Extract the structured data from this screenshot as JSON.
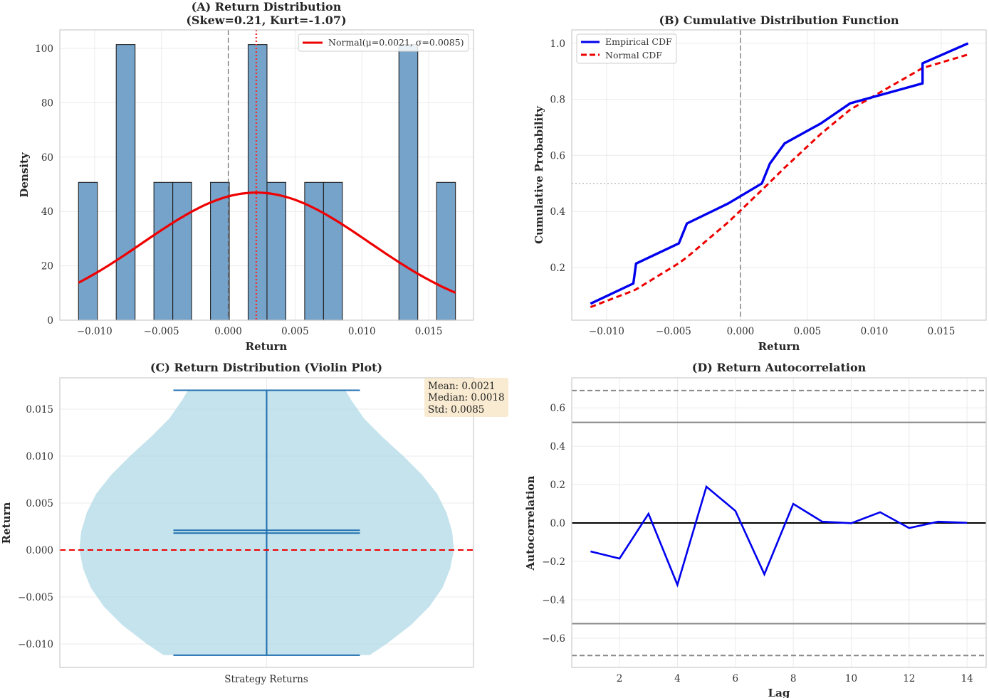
{
  "chart_data": [
    {
      "panel": "A",
      "type": "bar",
      "title": "(A) Return Distribution",
      "subtitle": "(Skew=0.21, Kurt=-1.07)",
      "xlabel": "Return",
      "ylabel": "Density",
      "xlim": [
        -0.0126,
        0.01835
      ],
      "ylim": [
        0,
        106.8
      ],
      "xticks": [
        -0.01,
        -0.005,
        0.0,
        0.005,
        0.01,
        0.015
      ],
      "xtick_labels": [
        "−0.010",
        "−0.005",
        "0.000",
        "0.005",
        "0.010",
        "0.015"
      ],
      "yticks": [
        0,
        20,
        40,
        60,
        80,
        100
      ],
      "ytick_labels": [
        "0",
        "20",
        "40",
        "60",
        "80",
        "100"
      ],
      "grid": true,
      "histogram": {
        "bin_start": -0.0112,
        "bin_width": 0.00141,
        "densities": [
          50.7,
          0,
          101.4,
          0,
          50.7,
          50.7,
          0,
          50.7,
          0,
          101.4,
          50.7,
          0,
          50.7,
          50.7,
          0,
          0,
          0,
          101.4,
          0,
          50.7
        ],
        "color": "#6a9bc6"
      },
      "normal_fit": {
        "mu": 0.0021,
        "sigma": 0.0085,
        "x_range": [
          -0.0112,
          0.017
        ],
        "color": "#ee0000"
      },
      "vlines": [
        {
          "x": 0.0,
          "style": "dashed",
          "color": "#666666",
          "name": "zero"
        },
        {
          "x": 0.0021,
          "style": "dotted",
          "color": "#ee3333",
          "name": "mean"
        }
      ],
      "legend": {
        "position": "top-right",
        "entries": [
          {
            "label": "Normal(μ=0.0021, σ=0.0085)",
            "color": "#ee0000",
            "style": "solid"
          }
        ]
      }
    },
    {
      "panel": "B",
      "type": "line",
      "title": "(B) Cumulative Distribution Function",
      "xlabel": "Return",
      "ylabel": "Cumulative Probability",
      "xlim": [
        -0.0126,
        0.01835
      ],
      "ylim": [
        0.012,
        1.048
      ],
      "xticks": [
        -0.01,
        -0.005,
        0.0,
        0.005,
        0.01,
        0.015
      ],
      "xtick_labels": [
        "−0.010",
        "−0.005",
        "0.000",
        "0.005",
        "0.010",
        "0.015"
      ],
      "yticks": [
        0.2,
        0.4,
        0.6,
        0.8,
        1.0
      ],
      "ytick_labels": [
        "0.2",
        "0.4",
        "0.6",
        "0.8",
        "1.0"
      ],
      "grid": true,
      "series": [
        {
          "name": "Empirical CDF",
          "color": "#0000ee",
          "style": "solid",
          "x": [
            -0.0112,
            -0.008,
            -0.0078,
            -0.0046,
            -0.004,
            -0.0009,
            0.0016,
            0.0022,
            0.0033,
            0.006,
            0.0082,
            0.0136,
            0.0136,
            0.017
          ],
          "y": [
            0.071,
            0.143,
            0.214,
            0.286,
            0.357,
            0.429,
            0.5,
            0.571,
            0.643,
            0.714,
            0.786,
            0.857,
            0.929,
            1.0
          ]
        },
        {
          "name": "Normal CDF",
          "color": "#ee0000",
          "style": "dashed",
          "mu": 0.0021,
          "sigma": 0.0085,
          "x": [
            -0.0112,
            -0.008,
            -0.0078,
            -0.0046,
            -0.004,
            -0.0009,
            0.0016,
            0.0022,
            0.0033,
            0.006,
            0.0082,
            0.0136,
            0.0136,
            0.017
          ]
        }
      ],
      "hlines": [
        {
          "y": 0.5,
          "style": "dotted",
          "color": "#aaaaaa"
        }
      ],
      "vlines": [
        {
          "x": 0.0,
          "style": "dashed",
          "color": "#666666"
        }
      ],
      "legend": {
        "position": "top-left",
        "entries": [
          {
            "label": "Empirical CDF",
            "color": "#0000ee",
            "style": "solid"
          },
          {
            "label": "Normal CDF",
            "color": "#ee0000",
            "style": "dashed"
          }
        ]
      }
    },
    {
      "panel": "C",
      "type": "violin",
      "title": "(C) Return Distribution (Violin Plot)",
      "xlabel": "",
      "ylabel": "Return",
      "ylim": [
        -0.0125,
        0.01833
      ],
      "yticks": [
        -0.01,
        -0.005,
        0.0,
        0.005,
        0.01,
        0.015
      ],
      "ytick_labels": [
        "−0.010",
        "−0.005",
        "0.000",
        "0.005",
        "0.010",
        "0.015"
      ],
      "xtick_labels": [
        "Strategy Returns"
      ],
      "grid": true,
      "stats": {
        "min": -0.0112,
        "max": 0.017,
        "mean": 0.0021,
        "median": 0.0018
      },
      "violin_profile": {
        "y": [
          -0.0112,
          -0.01,
          -0.008,
          -0.006,
          -0.004,
          -0.002,
          0.0,
          0.002,
          0.004,
          0.006,
          0.008,
          0.01,
          0.012,
          0.014,
          0.016,
          0.017
        ],
        "half_width": [
          0.55,
          0.64,
          0.77,
          0.87,
          0.94,
          0.98,
          1.0,
          0.99,
          0.96,
          0.91,
          0.83,
          0.73,
          0.62,
          0.52,
          0.45,
          0.42
        ]
      },
      "zero_line": {
        "y": 0.0,
        "color": "#ee0000",
        "style": "dashed"
      },
      "fill_color": "#add8e6",
      "line_color": "#1f6fb0",
      "annotation": {
        "lines": [
          "Mean: 0.0021",
          "Median: 0.0018",
          "Std: 0.0085"
        ],
        "bg": "#f5deb3"
      }
    },
    {
      "panel": "D",
      "type": "line",
      "title": "(D) Return Autocorrelation",
      "xlabel": "Lag",
      "ylabel": "Autocorrelation",
      "xlim": [
        0.35,
        14.66
      ],
      "ylim": [
        -0.752,
        0.756
      ],
      "xticks": [
        2,
        4,
        6,
        8,
        10,
        12,
        14
      ],
      "xtick_labels": [
        "2",
        "4",
        "6",
        "8",
        "10",
        "12",
        "14"
      ],
      "yticks": [
        -0.6,
        -0.4,
        -0.2,
        0.0,
        0.2,
        0.4,
        0.6
      ],
      "ytick_labels": [
        "−0.6",
        "−0.4",
        "−0.2",
        "0.0",
        "0.2",
        "0.4",
        "0.6"
      ],
      "grid": true,
      "series": [
        {
          "name": "Autocorrelation",
          "color": "#0000ee",
          "x": [
            1,
            2,
            3,
            4,
            5,
            6,
            7,
            8,
            9,
            10,
            11,
            12,
            13,
            14
          ],
          "y": [
            -0.148,
            -0.185,
            0.048,
            -0.322,
            0.189,
            0.063,
            -0.267,
            0.1,
            0.007,
            -0.001,
            0.056,
            -0.026,
            0.007,
            0.001
          ]
        }
      ],
      "hlines": [
        {
          "y": 0.0,
          "style": "solid",
          "color": "#000000"
        },
        {
          "y": 0.524,
          "style": "solid",
          "color": "#888888"
        },
        {
          "y": -0.524,
          "style": "solid",
          "color": "#888888"
        },
        {
          "y": 0.69,
          "style": "dashed",
          "color": "#888888"
        },
        {
          "y": -0.69,
          "style": "dashed",
          "color": "#888888"
        }
      ]
    }
  ]
}
